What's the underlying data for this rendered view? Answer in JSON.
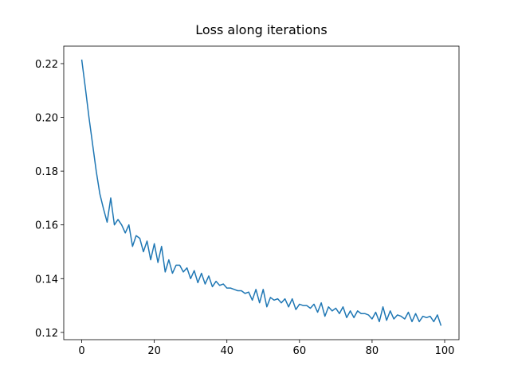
{
  "chart_data": {
    "type": "line",
    "title": "Loss along iterations",
    "x": [
      0,
      1,
      2,
      3,
      4,
      5,
      6,
      7,
      8,
      9,
      10,
      11,
      12,
      13,
      14,
      15,
      16,
      17,
      18,
      19,
      20,
      21,
      22,
      23,
      24,
      25,
      26,
      27,
      28,
      29,
      30,
      31,
      32,
      33,
      34,
      35,
      36,
      37,
      38,
      39,
      40,
      41,
      42,
      43,
      44,
      45,
      46,
      47,
      48,
      49,
      50,
      51,
      52,
      53,
      54,
      55,
      56,
      57,
      58,
      59,
      60,
      61,
      62,
      63,
      64,
      65,
      66,
      67,
      68,
      69,
      70,
      71,
      72,
      73,
      74,
      75,
      76,
      77,
      78,
      79,
      80,
      81,
      82,
      83,
      84,
      85,
      86,
      87,
      88,
      89,
      90,
      91,
      92,
      93,
      94,
      95,
      96,
      97,
      98,
      99
    ],
    "series": [
      {
        "color": "#1f77b4",
        "values": [
          0.2215,
          0.211,
          0.2,
          0.19,
          0.18,
          0.1715,
          0.166,
          0.161,
          0.17,
          0.16,
          0.162,
          0.16,
          0.157,
          0.16,
          0.152,
          0.156,
          0.155,
          0.15,
          0.154,
          0.147,
          0.153,
          0.146,
          0.152,
          0.1425,
          0.147,
          0.142,
          0.145,
          0.145,
          0.1425,
          0.144,
          0.14,
          0.143,
          0.1385,
          0.142,
          0.138,
          0.141,
          0.137,
          0.139,
          0.1375,
          0.138,
          0.1365,
          0.1365,
          0.136,
          0.1355,
          0.1355,
          0.1345,
          0.135,
          0.132,
          0.136,
          0.131,
          0.136,
          0.1295,
          0.133,
          0.132,
          0.1325,
          0.131,
          0.1325,
          0.1295,
          0.1325,
          0.1285,
          0.1305,
          0.13,
          0.13,
          0.129,
          0.1305,
          0.1275,
          0.131,
          0.126,
          0.1295,
          0.128,
          0.129,
          0.127,
          0.1295,
          0.1255,
          0.128,
          0.1255,
          0.128,
          0.127,
          0.127,
          0.1265,
          0.125,
          0.1275,
          0.124,
          0.1295,
          0.1245,
          0.128,
          0.125,
          0.1265,
          0.126,
          0.125,
          0.1275,
          0.124,
          0.127,
          0.124,
          0.126,
          0.1255,
          0.126,
          0.124,
          0.1265,
          0.1225
        ]
      }
    ],
    "xlim": [
      -4.95,
      103.95
    ],
    "xticks": [
      0,
      20,
      40,
      60,
      80,
      100
    ],
    "ylim": [
      0.1173,
      0.2265
    ],
    "yticks": [
      0.12,
      0.14,
      0.16,
      0.18,
      {
        "value": 0.2,
        "label": "0.20"
      },
      0.22
    ]
  }
}
